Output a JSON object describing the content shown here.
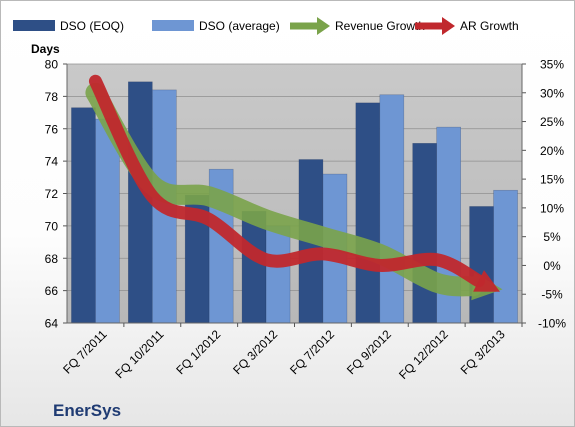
{
  "chart_data": {
    "type": "bar",
    "categories": [
      "FQ 7/2011",
      "FQ 10/2011",
      "FQ 1/2012",
      "FQ 3/2012",
      "FQ 7/2012",
      "FQ 9/2012",
      "FQ 12/2012",
      "FQ 3/2013"
    ],
    "series": [
      {
        "name": "DSO (EOQ)",
        "axis": "left",
        "kind": "bar",
        "color": "#2e4f86",
        "values": [
          77.3,
          78.9,
          71.9,
          70.9,
          74.1,
          77.6,
          75.1,
          71.2
        ]
      },
      {
        "name": "DSO (average)",
        "axis": "left",
        "kind": "bar",
        "color": "#6e96d3",
        "values": [
          76.6,
          78.4,
          73.5,
          70.0,
          73.2,
          78.1,
          76.1,
          72.2
        ]
      },
      {
        "name": "Revenue Growth",
        "axis": "right",
        "kind": "arrow-line",
        "color": "#7aa34a",
        "values": [
          0.3,
          0.14,
          0.12,
          0.08,
          0.05,
          0.02,
          -0.03,
          -0.04
        ]
      },
      {
        "name": "AR Growth",
        "axis": "right",
        "kind": "arrow-line",
        "color": "#c0282d",
        "values": [
          0.32,
          0.12,
          0.08,
          0.01,
          0.02,
          0.0,
          0.01,
          -0.04
        ]
      }
    ],
    "ylabel": "Days",
    "ylim": [
      64,
      80
    ],
    "yticks": [
      "64",
      "66",
      "68",
      "70",
      "72",
      "74",
      "76",
      "78",
      "80"
    ],
    "y2lim": [
      -0.1,
      0.35
    ],
    "y2ticks": [
      "-10%",
      "-5%",
      "0%",
      "5%",
      "10%",
      "15%",
      "20%",
      "25%",
      "30%",
      "35%"
    ],
    "grid": true,
    "legend_position": "top",
    "plot_background": "#c0c0c0",
    "annotation": "EnerSys"
  }
}
